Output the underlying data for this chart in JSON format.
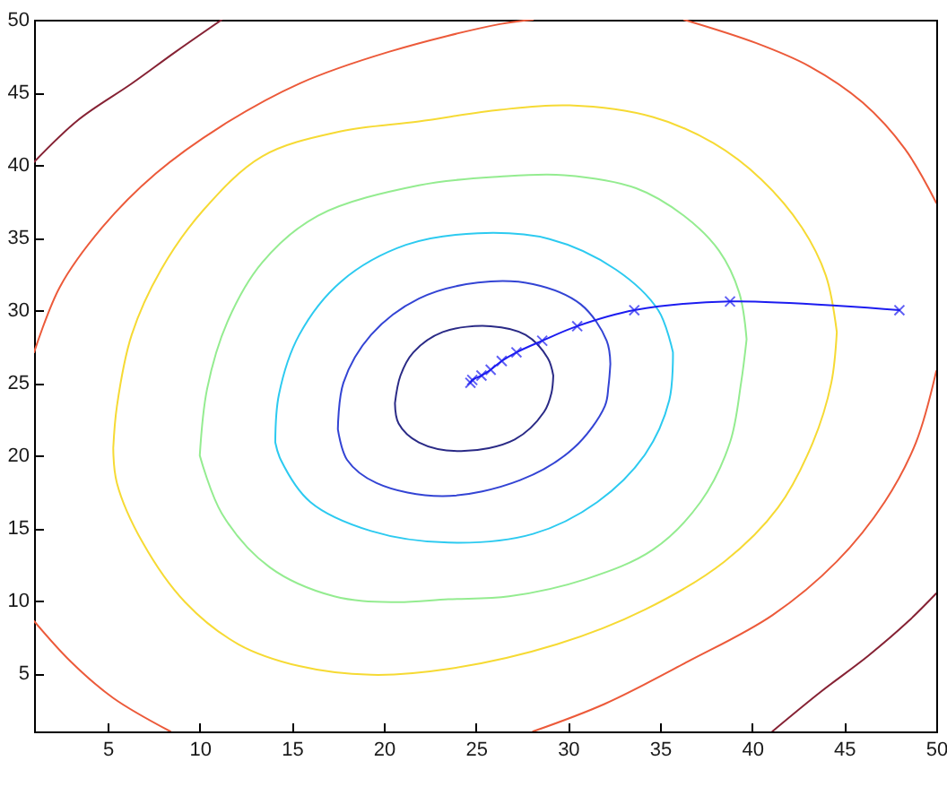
{
  "chart_data": {
    "type": "line",
    "xlim": [
      1,
      50
    ],
    "ylim": [
      1,
      50
    ],
    "xticks": [
      5,
      10,
      15,
      20,
      25,
      30,
      35,
      40,
      45,
      50
    ],
    "yticks": [
      5,
      10,
      15,
      20,
      25,
      30,
      35,
      40,
      45,
      50
    ],
    "grid": false,
    "marker": "none",
    "series": [
      {
        "color": "#2a2a86",
        "x": [
          20.6,
          20.9,
          21.6,
          23.2,
          25.8,
          27.7,
          28.9,
          29.2,
          null,
          29.2,
          29.1,
          28.7,
          27.1,
          24.2,
          21.9,
          20.8,
          20.6
        ],
        "values": [
          23.6,
          25.5,
          27.1,
          28.5,
          28.9,
          28.3,
          26.7,
          25.5,
          null,
          25.5,
          24.3,
          23.0,
          21.1,
          20.3,
          20.9,
          22.2,
          23.6
        ]
      },
      {
        "color": "#3344d4",
        "x": [
          17.5,
          17.8,
          19.3,
          21.9,
          25.1,
          28.1,
          30.7,
          32.1,
          32.3,
          null,
          32.3,
          32.2,
          32.0,
          30.3,
          27.4,
          23.2,
          19.6,
          18.0,
          17.5
        ],
        "values": [
          21.8,
          25.0,
          28.3,
          30.8,
          31.9,
          31.8,
          30.4,
          27.9,
          26.3,
          null,
          26.3,
          24.8,
          23.4,
          20.5,
          18.3,
          17.2,
          18.1,
          19.7,
          21.8
        ]
      },
      {
        "color": "#2ccaf0",
        "x": [
          14.1,
          14.3,
          15.4,
          17.7,
          21.2,
          25.1,
          29.0,
          32.6,
          34.9,
          35.7,
          null,
          35.7,
          35.5,
          34.2,
          31.6,
          28.1,
          23.5,
          19.3,
          16.0,
          14.4,
          14.1
        ],
        "values": [
          20.9,
          24.2,
          28.3,
          32.0,
          34.5,
          35.3,
          34.9,
          32.8,
          30.0,
          27.1,
          null,
          27.1,
          23.8,
          20.1,
          16.8,
          14.6,
          14.0,
          14.8,
          16.8,
          19.7,
          20.9
        ]
      },
      {
        "color": "#94ec90",
        "x": [
          10.0,
          10.4,
          11.5,
          13.4,
          16.4,
          21.9,
          26.3,
          29.8,
          33.7,
          36.3,
          38.2,
          39.3,
          39.7,
          null,
          39.7,
          39.4,
          38.8,
          37.2,
          34.6,
          31.0,
          26.8,
          23.5,
          20.6,
          17.3,
          13.8,
          11.2,
          10.0
        ],
        "values": [
          20.0,
          24.6,
          29.2,
          33.3,
          36.5,
          38.6,
          39.2,
          39.3,
          38.4,
          36.5,
          34.1,
          31.2,
          28.0,
          null,
          28.0,
          25.0,
          20.9,
          16.8,
          13.5,
          11.5,
          10.3,
          10.1,
          9.9,
          10.3,
          12.3,
          16.0,
          20.0
        ]
      },
      {
        "color": "#f6da34",
        "x": [
          5.3,
          5.5,
          6.3,
          7.9,
          10.2,
          13.4,
          17.6,
          21.9,
          26.3,
          30.1,
          34.6,
          37.9,
          40.5,
          42.7,
          44.0,
          44.6,
          null,
          44.6,
          44.3,
          43.3,
          41.4,
          38.5,
          34.2,
          29.4,
          23.5,
          19.3,
          15.4,
          12.1,
          9.2,
          6.9,
          5.5,
          5.3
        ],
        "values": [
          20.5,
          23.4,
          28.3,
          32.8,
          36.9,
          40.6,
          42.3,
          43.0,
          43.8,
          44.1,
          43.3,
          41.5,
          39.0,
          35.7,
          32.4,
          28.5,
          null,
          28.5,
          25.0,
          20.9,
          16.4,
          12.7,
          9.4,
          7.0,
          5.3,
          4.9,
          5.5,
          7.0,
          9.9,
          14.0,
          18.1,
          20.5
        ]
      },
      {
        "color": "#ec5a3a",
        "x": [
          1.0,
          2.4,
          4.7,
          7.6,
          11.2,
          15.4,
          20.3,
          26.3,
          28.1,
          null,
          36.3,
          40.2,
          43.1,
          46.0,
          48.3,
          50.0,
          null,
          50.0,
          48.9,
          47.2,
          44.6,
          41.1,
          36.5,
          32.0,
          28.1,
          null,
          8.4,
          5.3,
          3.0,
          1.0
        ],
        "values": [
          27.1,
          31.6,
          35.7,
          39.4,
          42.7,
          45.6,
          47.8,
          49.7,
          50.0,
          null,
          50.0,
          48.4,
          46.8,
          44.3,
          41.1,
          37.4,
          null,
          25.8,
          20.9,
          16.8,
          12.7,
          9.0,
          5.8,
          2.9,
          1.0,
          null,
          1.0,
          3.3,
          5.8,
          8.6
        ]
      },
      {
        "color": "#862234",
        "x": [
          1.0,
          3.4,
          6.3,
          8.7,
          11.2,
          null,
          41.1,
          43.7,
          46.3,
          48.5,
          50.0
        ],
        "values": [
          40.2,
          43.1,
          45.6,
          47.8,
          50.0,
          null,
          1.0,
          3.7,
          6.2,
          8.6,
          10.5
        ]
      },
      {
        "color": "#1c1cf0",
        "marker": "cross",
        "x": [
          48.0,
          38.8,
          33.6,
          30.5,
          28.6,
          27.2,
          26.4,
          25.8,
          25.3,
          24.8,
          24.7
        ],
        "values": [
          30.0,
          30.6,
          30.0,
          28.9,
          27.9,
          27.1,
          26.5,
          25.9,
          25.5,
          25.2,
          25.0
        ]
      }
    ]
  }
}
